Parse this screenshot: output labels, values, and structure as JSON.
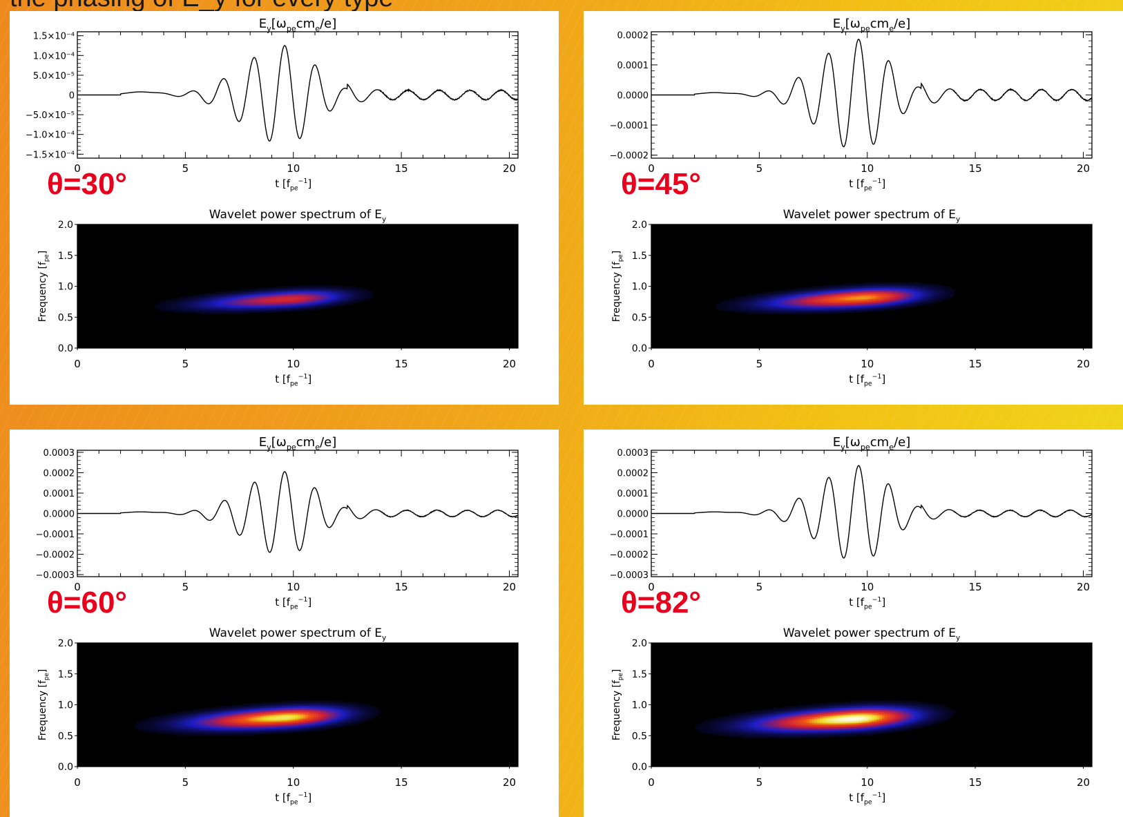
{
  "slide": {
    "heading": "the phasing of E_y for every type"
  },
  "common": {
    "ey_title_main": "E",
    "ey_title_sub": "y",
    "ey_title_unit": "[ω",
    "ey_title_unit_sub": "pe",
    "ey_title_unit_tail": "cm",
    "ey_title_unit_sub2": "e",
    "ey_title_unit_end": "/e]",
    "wavelet_title": "Wavelet power spectrum of E",
    "wavelet_title_sub": "y",
    "x_label_main": "t [f",
    "x_label_sub": "pe",
    "x_label_sup": "−1",
    "x_label_end": "]",
    "y_label_freq": "Frequency [f",
    "y_label_freq_sub": "pe",
    "y_label_freq_end": "]",
    "time_ticks": [
      "0",
      "5",
      "10",
      "15",
      "20"
    ],
    "freq_ticks": [
      "0.0",
      "0.5",
      "1.0",
      "1.5",
      "2.0"
    ]
  },
  "chart_data": [
    {
      "panel_label": "θ=30°",
      "type": "line",
      "title": "E_y[ω_pe cm_e/e]",
      "xlabel": "t [f_pe^-1]",
      "xlim": [
        0,
        20.4
      ],
      "ylim": [
        -0.00016,
        0.00016
      ],
      "yticks": [
        -0.00015,
        -0.0001,
        -5e-05,
        0,
        5e-05,
        0.0001,
        0.00015
      ],
      "ytick_labels": [
        "−1.5×10⁻⁴",
        "−1.0×10⁻⁴",
        "−5.0×10⁻⁵",
        "0",
        "5.0×10⁻⁵",
        "1.0×10⁻⁴",
        "1.5×10⁻⁴"
      ],
      "signal": {
        "period": 1.43,
        "peak_time": 9.6,
        "env_amp": 0.000125,
        "pre_width": 2.7,
        "post_width": 2.0,
        "tail_amp": 1.2e-05,
        "noise": 2.5e-06
      },
      "wavelet": {
        "type": "heatmap",
        "title": "Wavelet power spectrum of E_y",
        "xlabel": "t [f_pe^-1]",
        "ylabel": "Frequency [f_pe]",
        "xlim": [
          0,
          20.4
        ],
        "ylim": [
          0,
          2.0
        ],
        "peak_power": 0.55,
        "center_t": 9.8,
        "center_f": 0.8,
        "t_width": 2.7,
        "f_width": 0.12
      }
    },
    {
      "panel_label": "θ=45°",
      "type": "line",
      "title": "E_y[ω_pe cm_e/e]",
      "xlabel": "t [f_pe^-1]",
      "xlim": [
        0,
        20.4
      ],
      "ylim": [
        -0.00021,
        0.00021
      ],
      "yticks": [
        -0.0002,
        -0.0001,
        0,
        0.0001,
        0.0002
      ],
      "ytick_labels": [
        "−0.0002",
        "−0.0001",
        "0.0000",
        "0.0001",
        "0.0002"
      ],
      "signal": {
        "period": 1.41,
        "peak_time": 9.6,
        "env_amp": 0.000185,
        "pre_width": 2.6,
        "post_width": 2.0,
        "tail_amp": 1.8e-05,
        "noise": 3e-06
      },
      "wavelet": {
        "type": "heatmap",
        "title": "Wavelet power spectrum of E_y",
        "xlabel": "t [f_pe^-1]",
        "ylabel": "Frequency [f_pe]",
        "xlim": [
          0,
          20.4
        ],
        "ylim": [
          0,
          2.0
        ],
        "peak_power": 0.78,
        "center_t": 9.8,
        "center_f": 0.82,
        "t_width": 2.8,
        "f_width": 0.13
      }
    },
    {
      "panel_label": "θ=60°",
      "type": "line",
      "title": "E_y[ω_pe cm_e/e]",
      "xlabel": "t [f_pe^-1]",
      "xlim": [
        0,
        20.4
      ],
      "ylim": [
        -0.00031,
        0.00031
      ],
      "yticks": [
        -0.0003,
        -0.0002,
        -0.0001,
        0,
        0.0001,
        0.0002,
        0.0003
      ],
      "ytick_labels": [
        "−0.0003",
        "−0.0002",
        "−0.0001",
        "0.0000",
        "0.0001",
        "0.0002",
        "0.0003"
      ],
      "signal": {
        "period": 1.41,
        "peak_time": 9.6,
        "env_amp": 0.000205,
        "pre_width": 2.6,
        "post_width": 2.0,
        "tail_amp": 1.6e-05,
        "noise": 3e-06
      },
      "wavelet": {
        "type": "heatmap",
        "title": "Wavelet power spectrum of E_y",
        "xlabel": "t [f_pe^-1]",
        "ylabel": "Frequency [f_pe]",
        "xlim": [
          0,
          20.4
        ],
        "ylim": [
          0,
          2.0
        ],
        "peak_power": 0.9,
        "center_t": 9.6,
        "center_f": 0.8,
        "t_width": 2.8,
        "f_width": 0.14
      }
    },
    {
      "panel_label": "θ=82°",
      "type": "line",
      "title": "E_y[ω_pe cm_e/e]",
      "xlabel": "t [f_pe^-1]",
      "xlim": [
        0,
        20.4
      ],
      "ylim": [
        -0.00031,
        0.00031
      ],
      "yticks": [
        -0.0003,
        -0.0002,
        -0.0001,
        0,
        0.0001,
        0.0002,
        0.0003
      ],
      "ytick_labels": [
        "−0.0003",
        "−0.0002",
        "−0.0001",
        "0.0000",
        "0.0001",
        "0.0002",
        "0.0003"
      ],
      "signal": {
        "period": 1.4,
        "peak_time": 9.6,
        "env_amp": 0.000235,
        "pre_width": 2.6,
        "post_width": 2.0,
        "tail_amp": 1.6e-05,
        "noise": 3e-06
      },
      "wavelet": {
        "type": "heatmap",
        "title": "Wavelet power spectrum of E_y",
        "xlabel": "t [f_pe^-1]",
        "ylabel": "Frequency [f_pe]",
        "xlim": [
          0,
          20.4
        ],
        "ylim": [
          0,
          2.0
        ],
        "peak_power": 1.0,
        "center_t": 9.4,
        "center_f": 0.78,
        "t_width": 2.9,
        "f_width": 0.15
      }
    }
  ],
  "colors": {
    "panel_label": "#e8001c",
    "line": "#000000",
    "heat_bg": "#000000"
  }
}
